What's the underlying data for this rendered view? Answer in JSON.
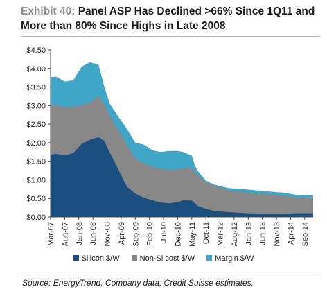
{
  "header": {
    "exhibit": "Exhibit 40:",
    "title_line1": " Panel ASP Has Declined >66% Since 1Q11 and",
    "title_line2": "More than 80% Since Highs in Late 2008"
  },
  "source": "Source: EnergyTrend, Company data, Credit Suisse estimates.",
  "chart_data": {
    "type": "area",
    "stacked": true,
    "y_unit": "$/W",
    "ylim": [
      0,
      4.5
    ],
    "y_ticks": [
      "$0.00",
      "$0.50",
      "$1.00",
      "$1.50",
      "$2.00",
      "$2.50",
      "$3.00",
      "$3.50",
      "$4.00",
      "$4.50"
    ],
    "x_labels": [
      "Mar-07",
      "Aug-07",
      "Jan-08",
      "Jun-08",
      "Nov-08",
      "Apr-09",
      "Sep-09",
      "Feb-10",
      "Jul-10",
      "Dec-10",
      "May-11",
      "Oct-11",
      "Mar-12",
      "Aug-12",
      "Jan-13",
      "Jun-13",
      "Nov-13",
      "Apr-14",
      "Sep-14"
    ],
    "x_range_months": [
      "2007-03",
      "2014-12"
    ],
    "series": [
      {
        "name": "Silicon $/W",
        "color": "#1b4f80",
        "points": [
          [
            "2007-03",
            1.68
          ],
          [
            "2007-05",
            1.7
          ],
          [
            "2007-08",
            1.66
          ],
          [
            "2007-11",
            1.72
          ],
          [
            "2008-02",
            1.97
          ],
          [
            "2008-05",
            2.08
          ],
          [
            "2008-08",
            2.15
          ],
          [
            "2008-10",
            2.05
          ],
          [
            "2008-12",
            1.73
          ],
          [
            "2009-03",
            1.28
          ],
          [
            "2009-06",
            0.82
          ],
          [
            "2009-09",
            0.63
          ],
          [
            "2009-12",
            0.52
          ],
          [
            "2010-03",
            0.45
          ],
          [
            "2010-06",
            0.39
          ],
          [
            "2010-09",
            0.37
          ],
          [
            "2010-12",
            0.4
          ],
          [
            "2011-02",
            0.45
          ],
          [
            "2011-05",
            0.44
          ],
          [
            "2011-06",
            0.38
          ],
          [
            "2011-07",
            0.3
          ],
          [
            "2011-10",
            0.22
          ],
          [
            "2012-01",
            0.16
          ],
          [
            "2012-06",
            0.13
          ],
          [
            "2013-01",
            0.1
          ],
          [
            "2013-06",
            0.09
          ],
          [
            "2014-01",
            0.09
          ],
          [
            "2014-06",
            0.1
          ],
          [
            "2014-12",
            0.1
          ]
        ]
      },
      {
        "name": "Non-Si cost $/W",
        "color": "#888888",
        "points": [
          [
            "2007-03",
            3.02
          ],
          [
            "2007-05",
            3.0
          ],
          [
            "2007-08",
            2.96
          ],
          [
            "2007-11",
            2.98
          ],
          [
            "2008-02",
            3.0
          ],
          [
            "2008-05",
            3.1
          ],
          [
            "2008-08",
            3.25
          ],
          [
            "2008-10",
            3.05
          ],
          [
            "2008-12",
            2.72
          ],
          [
            "2009-03",
            2.35
          ],
          [
            "2009-06",
            1.95
          ],
          [
            "2009-09",
            1.58
          ],
          [
            "2009-12",
            1.45
          ],
          [
            "2010-03",
            1.35
          ],
          [
            "2010-06",
            1.3
          ],
          [
            "2010-09",
            1.27
          ],
          [
            "2010-12",
            1.28
          ],
          [
            "2011-02",
            1.32
          ],
          [
            "2011-05",
            1.32
          ],
          [
            "2011-06",
            1.24
          ],
          [
            "2011-07",
            1.15
          ],
          [
            "2011-10",
            0.93
          ],
          [
            "2012-01",
            0.85
          ],
          [
            "2012-06",
            0.72
          ],
          [
            "2013-01",
            0.66
          ],
          [
            "2013-06",
            0.62
          ],
          [
            "2014-01",
            0.58
          ],
          [
            "2014-06",
            0.53
          ],
          [
            "2014-12",
            0.52
          ]
        ]
      },
      {
        "name": "Margin $/W",
        "color": "#3fa6c8",
        "points": [
          [
            "2007-03",
            3.77
          ],
          [
            "2007-05",
            3.78
          ],
          [
            "2007-08",
            3.65
          ],
          [
            "2007-11",
            3.68
          ],
          [
            "2008-02",
            4.05
          ],
          [
            "2008-05",
            4.17
          ],
          [
            "2008-08",
            4.1
          ],
          [
            "2008-10",
            3.52
          ],
          [
            "2008-12",
            3.05
          ],
          [
            "2009-03",
            2.7
          ],
          [
            "2009-06",
            2.38
          ],
          [
            "2009-09",
            2.0
          ],
          [
            "2009-12",
            1.95
          ],
          [
            "2010-03",
            1.8
          ],
          [
            "2010-06",
            1.75
          ],
          [
            "2010-09",
            1.78
          ],
          [
            "2010-12",
            1.78
          ],
          [
            "2011-02",
            1.75
          ],
          [
            "2011-05",
            1.65
          ],
          [
            "2011-06",
            1.42
          ],
          [
            "2011-07",
            1.25
          ],
          [
            "2011-10",
            0.98
          ],
          [
            "2012-01",
            0.87
          ],
          [
            "2012-06",
            0.78
          ],
          [
            "2013-01",
            0.74
          ],
          [
            "2013-06",
            0.7
          ],
          [
            "2014-01",
            0.66
          ],
          [
            "2014-06",
            0.6
          ],
          [
            "2014-12",
            0.58
          ]
        ]
      }
    ]
  }
}
